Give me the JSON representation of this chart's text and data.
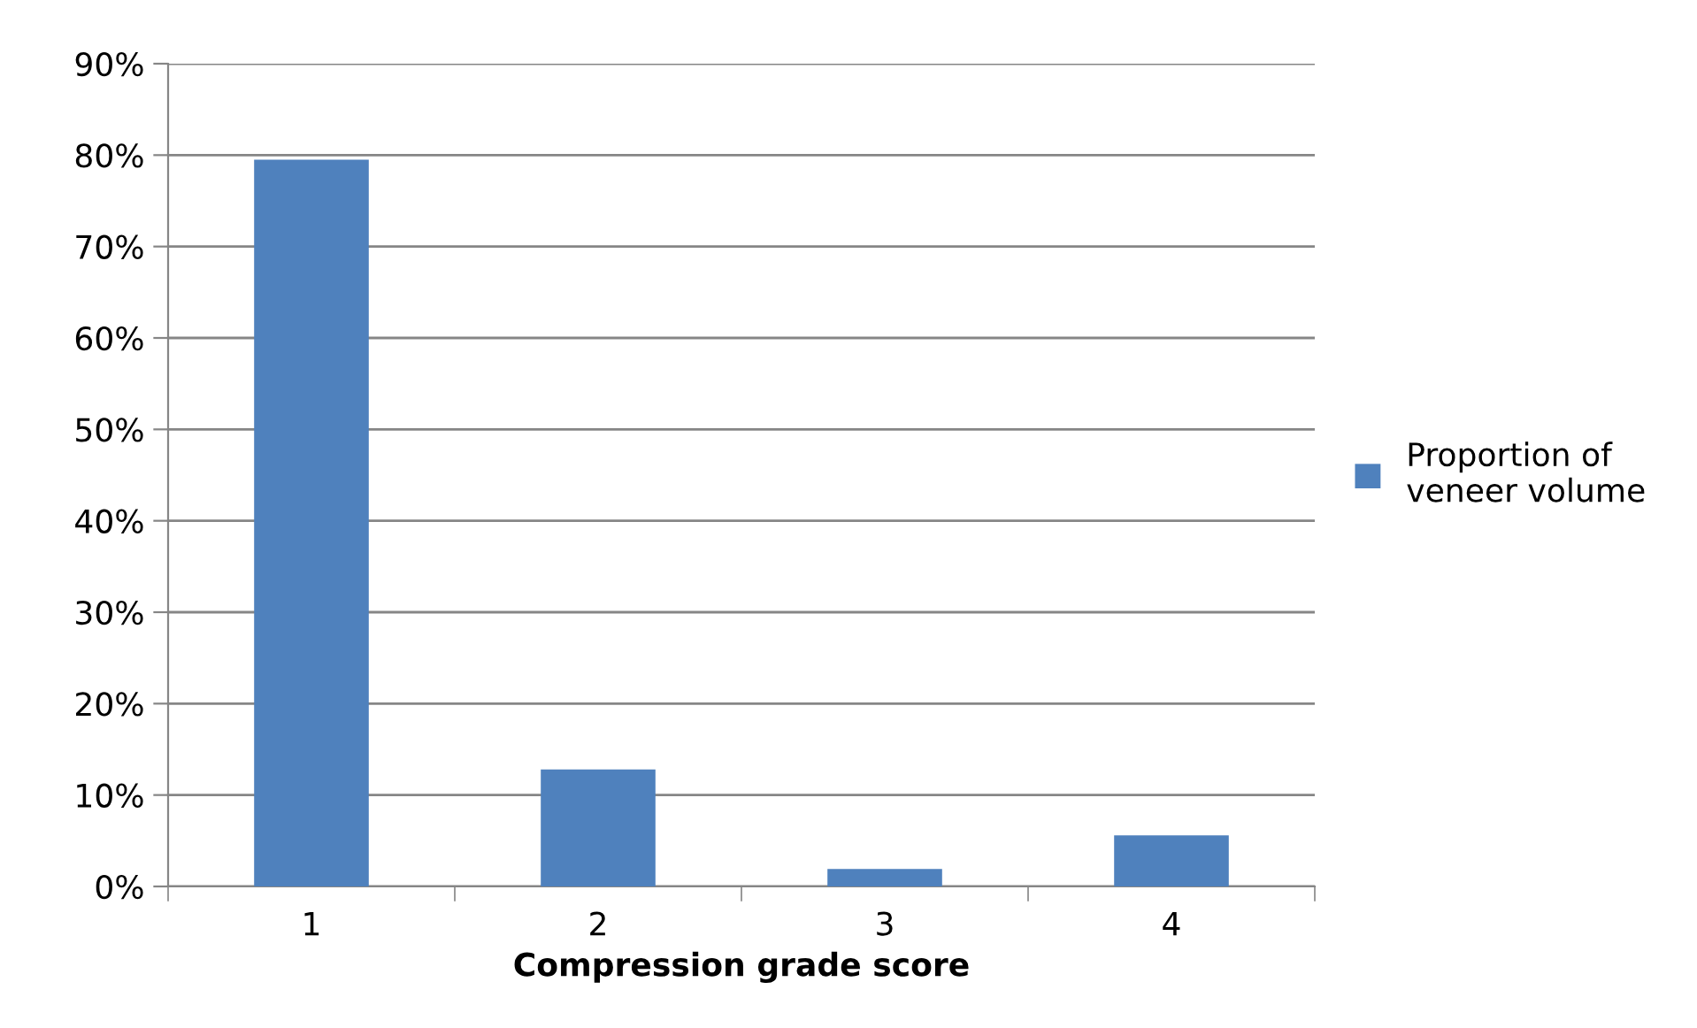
{
  "chart_data": {
    "type": "bar",
    "xlabel": "Compression grade score",
    "categories": [
      "1",
      "2",
      "3",
      "4"
    ],
    "series": [
      {
        "name": "Proportion of\nveneer volume",
        "color": "#4f81bd",
        "values": [
          79.5,
          12.8,
          1.9,
          5.6
        ]
      }
    ],
    "ylim": [
      0,
      90
    ],
    "yticks": [
      {
        "value": 0,
        "label": "0%"
      },
      {
        "value": 10,
        "label": "10%"
      },
      {
        "value": 20,
        "label": "20%"
      },
      {
        "value": 30,
        "label": "30%"
      },
      {
        "value": 40,
        "label": "40%"
      },
      {
        "value": 50,
        "label": "50%"
      },
      {
        "value": 60,
        "label": "60%"
      },
      {
        "value": 70,
        "label": "70%"
      },
      {
        "value": 80,
        "label": "80%"
      },
      {
        "value": 90,
        "label": "90%"
      }
    ],
    "grid": "y",
    "legend": "right"
  }
}
